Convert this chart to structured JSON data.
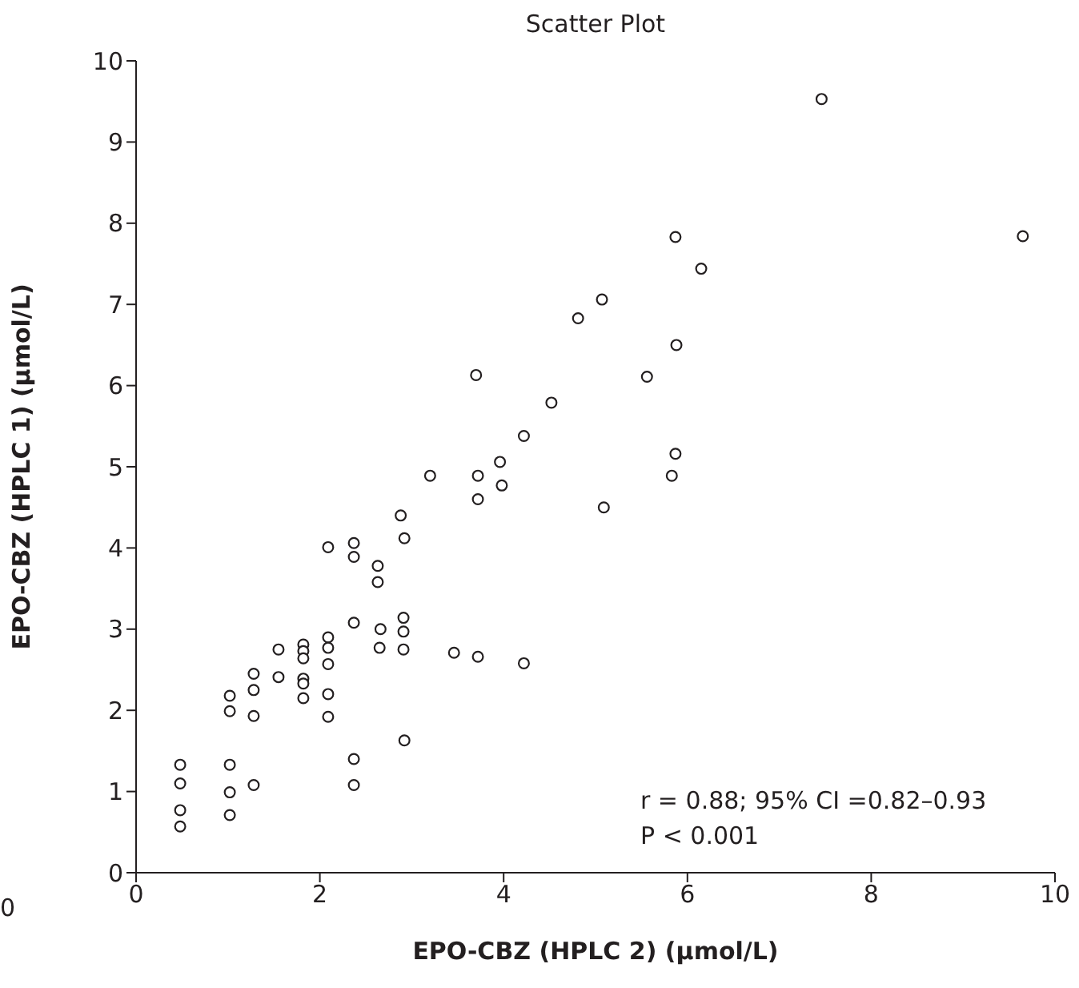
{
  "chart_data": {
    "type": "scatter",
    "title": "Scatter Plot",
    "xlabel": "EPO-CBZ (HPLC 2) (µmol/L)",
    "ylabel": "EPO-CBZ (HPLC 1) (µmol/L)",
    "x": [
      0.48,
      0.48,
      0.48,
      0.48,
      1.02,
      1.02,
      1.02,
      1.02,
      1.02,
      1.28,
      1.28,
      1.28,
      1.28,
      1.55,
      1.55,
      1.82,
      1.82,
      1.82,
      1.82,
      1.82,
      1.82,
      2.09,
      2.09,
      2.09,
      2.09,
      2.09,
      2.09,
      2.37,
      2.37,
      2.37,
      2.37,
      2.37,
      2.63,
      2.63,
      2.66,
      2.65,
      2.91,
      2.91,
      2.91,
      2.88,
      2.92,
      2.92,
      3.46,
      3.72,
      4.22,
      3.72,
      3.98,
      5.09,
      7.46,
      9.65,
      5.87,
      6.15,
      5.07,
      4.81,
      5.88,
      3.7,
      5.56,
      4.52,
      4.22,
      3.96,
      3.2,
      3.72,
      5.87,
      5.83
    ],
    "values": [
      1.33,
      1.1,
      0.77,
      0.57,
      2.18,
      1.99,
      1.33,
      0.99,
      0.71,
      2.45,
      2.25,
      1.93,
      1.08,
      2.75,
      2.41,
      2.81,
      2.73,
      2.64,
      2.39,
      2.33,
      2.15,
      4.01,
      2.9,
      2.77,
      2.57,
      2.2,
      1.92,
      4.06,
      3.89,
      3.08,
      1.4,
      1.08,
      3.78,
      3.58,
      3.0,
      2.77,
      3.14,
      2.97,
      2.75,
      4.4,
      4.12,
      1.63,
      2.71,
      2.66,
      2.58,
      4.6,
      4.77,
      4.5,
      9.53,
      7.84,
      7.83,
      7.44,
      7.06,
      6.83,
      6.5,
      6.13,
      6.11,
      5.79,
      5.38,
      5.06,
      4.89,
      4.89,
      5.16,
      4.89
    ],
    "color": "#231f20",
    "marker": "circle",
    "xlim": [
      0,
      10
    ],
    "xticks": [
      0,
      2,
      4,
      6,
      8,
      10
    ],
    "ylim": [
      0,
      10
    ],
    "yticks": [
      0,
      1,
      2,
      3,
      4,
      5,
      6,
      7,
      8,
      9,
      10
    ],
    "grid": false,
    "annotations": [
      "r = 0.88; 95% CI =0.82–0.93",
      "P < 0.001",
      "0"
    ]
  }
}
